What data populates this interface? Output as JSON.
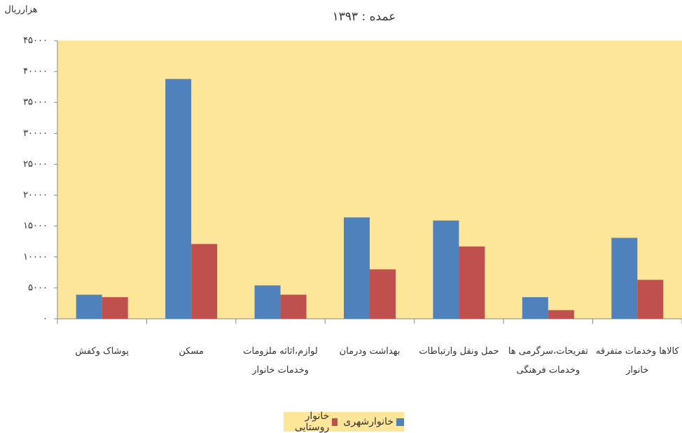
{
  "chart_data": {
    "type": "bar",
    "title": "عمده : ۱۳۹۳",
    "y_label": "هزارریال",
    "categories": [
      "پوشاک وکفش",
      "مسکن",
      "لوازم،اثاثه ملزومات وخدمات خانوار",
      "بهداشت ودرمان",
      "حمل ونقل وارتباطات",
      "تفریحات،سرگرمی ها وخدمات فرهنگی",
      "کالاها وخدمات متفرقه خانوار"
    ],
    "series": [
      {
        "name": "خانوارشهری",
        "color": "#4f81bd",
        "values": [
          3900,
          38800,
          5400,
          16400,
          15900,
          3500,
          13100
        ]
      },
      {
        "name": "خانوار روستایی",
        "color": "#c0504d",
        "values": [
          3500,
          12100,
          3900,
          8000,
          11700,
          1400,
          6300
        ]
      }
    ],
    "ylim": [
      0,
      45000
    ],
    "yticks": [
      {
        "value": 0,
        "label": "۰"
      },
      {
        "value": 5000,
        "label": "۵۰۰۰"
      },
      {
        "value": 10000,
        "label": "۱۰۰۰۰"
      },
      {
        "value": 15000,
        "label": "۱۵۰۰۰"
      },
      {
        "value": 20000,
        "label": "۲۰۰۰۰"
      },
      {
        "value": 25000,
        "label": "۲۵۰۰۰"
      },
      {
        "value": 30000,
        "label": "۳۰۰۰۰"
      },
      {
        "value": 35000,
        "label": "۳۵۰۰۰"
      },
      {
        "value": 40000,
        "label": "۴۰۰۰۰"
      },
      {
        "value": 45000,
        "label": "۴۵۰۰۰"
      }
    ],
    "background": "#fde59a",
    "grid": false
  }
}
